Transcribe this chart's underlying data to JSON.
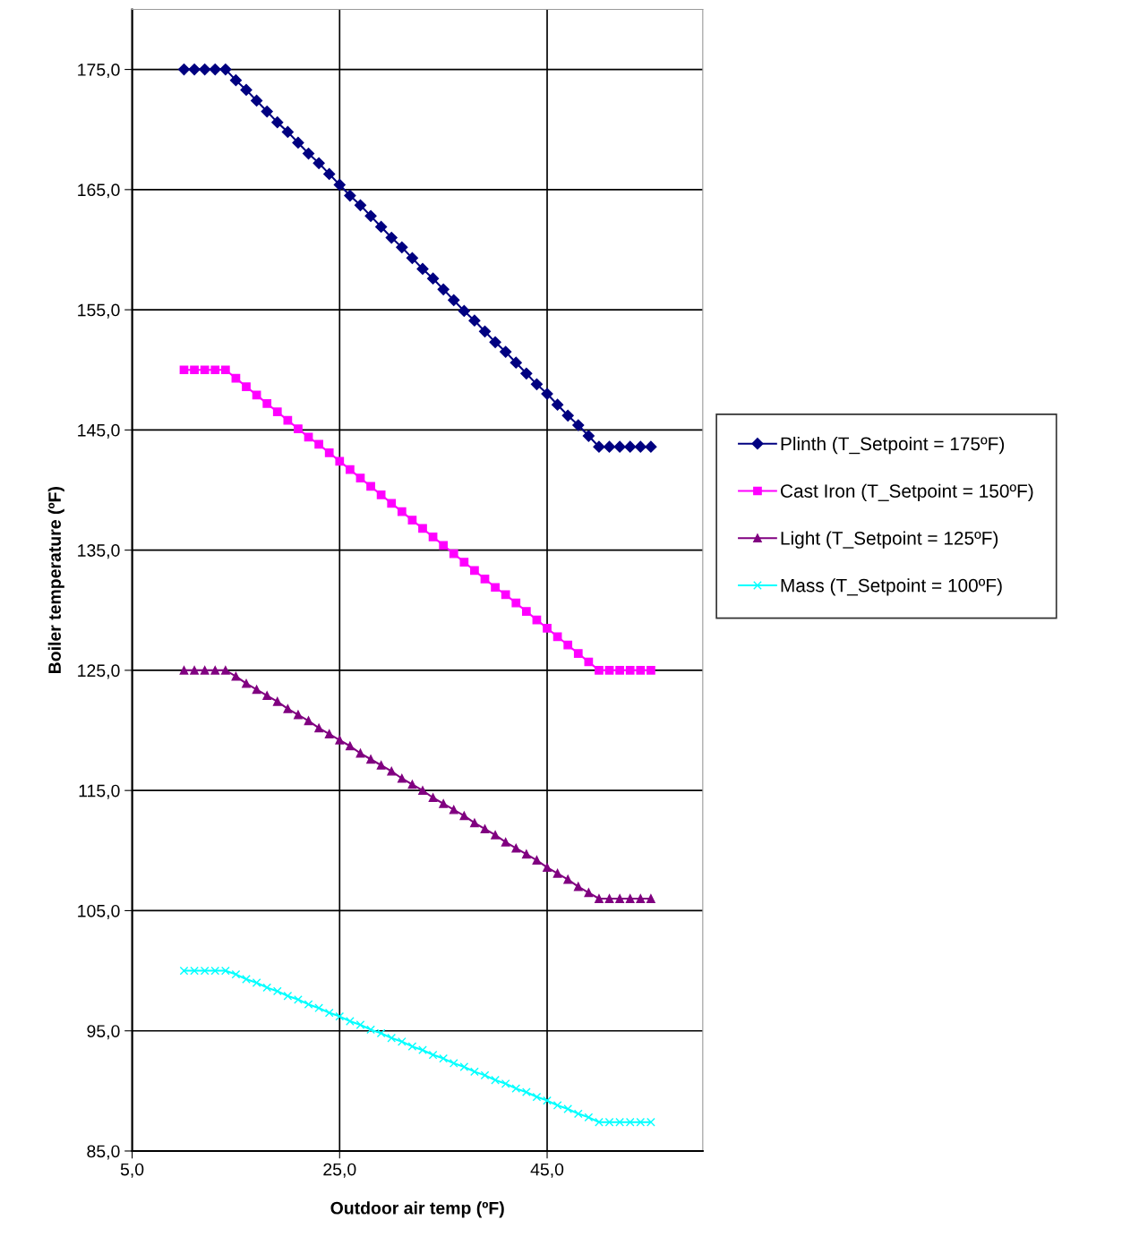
{
  "chart_data": {
    "type": "line",
    "xlabel": "Outdoor air temp (ºF)",
    "ylabel": "Boiler temperature (ºF)",
    "x": [
      10,
      11,
      12,
      13,
      14,
      15,
      16,
      17,
      18,
      19,
      20,
      21,
      22,
      23,
      24,
      25,
      26,
      27,
      28,
      29,
      30,
      31,
      32,
      33,
      34,
      35,
      36,
      37,
      38,
      39,
      40,
      41,
      42,
      43,
      44,
      45,
      46,
      47,
      48,
      49,
      50,
      51,
      52,
      53,
      54,
      55
    ],
    "series": [
      {
        "name": "Plinth (T_Setpoint = 175ºF)",
        "color": "#000080",
        "marker": "diamond",
        "values": [
          175,
          175,
          175,
          175,
          175,
          174.1,
          173.3,
          172.4,
          171.5,
          170.6,
          169.8,
          168.9,
          168.0,
          167.2,
          166.3,
          165.4,
          164.5,
          163.7,
          162.8,
          161.9,
          161.0,
          160.2,
          159.3,
          158.4,
          157.6,
          156.7,
          155.8,
          154.9,
          154.1,
          153.2,
          152.3,
          151.5,
          150.6,
          149.7,
          148.8,
          148.0,
          147.1,
          146.2,
          145.4,
          144.5,
          143.6,
          143.6,
          143.6,
          143.6,
          143.6,
          143.6
        ]
      },
      {
        "name": "Cast Iron (T_Setpoint = 150ºF)",
        "color": "#ff00ff",
        "marker": "square",
        "values": [
          150,
          150,
          150,
          150,
          150,
          149.3,
          148.6,
          147.9,
          147.2,
          146.5,
          145.8,
          145.1,
          144.4,
          143.8,
          143.1,
          142.4,
          141.7,
          141.0,
          140.3,
          139.6,
          138.9,
          138.2,
          137.5,
          136.8,
          136.1,
          135.4,
          134.7,
          134.0,
          133.3,
          132.6,
          131.9,
          131.3,
          130.6,
          129.9,
          129.2,
          128.5,
          127.8,
          127.1,
          126.4,
          125.7,
          125.0,
          125.0,
          125.0,
          125.0,
          125.0,
          125.0
        ]
      },
      {
        "name": "Light (T_Setpoint = 125ºF)",
        "color": "#800080",
        "marker": "triangle",
        "values": [
          125,
          125,
          125,
          125,
          125,
          124.5,
          123.9,
          123.4,
          122.9,
          122.4,
          121.8,
          121.3,
          120.8,
          120.2,
          119.7,
          119.2,
          118.7,
          118.1,
          117.6,
          117.1,
          116.6,
          116.0,
          115.5,
          115.0,
          114.4,
          113.9,
          113.4,
          112.9,
          112.3,
          111.8,
          111.3,
          110.7,
          110.2,
          109.7,
          109.2,
          108.6,
          108.1,
          107.6,
          107.0,
          106.5,
          106.0,
          106.0,
          106.0,
          106.0,
          106.0,
          106.0
        ]
      },
      {
        "name": "Mass (T_Setpoint = 100ºF)",
        "color": "#00ffff",
        "marker": "cross",
        "values": [
          100,
          100,
          100,
          100,
          100,
          99.7,
          99.3,
          99.0,
          98.6,
          98.3,
          97.9,
          97.6,
          97.2,
          96.9,
          96.5,
          96.2,
          95.8,
          95.5,
          95.1,
          94.8,
          94.4,
          94.1,
          93.7,
          93.4,
          93.0,
          92.7,
          92.3,
          92.0,
          91.6,
          91.3,
          90.9,
          90.6,
          90.2,
          89.9,
          89.5,
          89.2,
          88.8,
          88.5,
          88.1,
          87.8,
          87.4,
          87.4,
          87.4,
          87.4,
          87.4,
          87.4
        ]
      }
    ],
    "xlim": [
      5,
      60
    ],
    "xticks": [
      {
        "value": 5,
        "label": "5,0"
      },
      {
        "value": 25,
        "label": "25,0"
      },
      {
        "value": 45,
        "label": "45,0"
      }
    ],
    "ylim": [
      85,
      180
    ],
    "yticks": [
      {
        "value": 85,
        "label": "85,0"
      },
      {
        "value": 95,
        "label": "95,0"
      },
      {
        "value": 105,
        "label": "105,0"
      },
      {
        "value": 115,
        "label": "115,0"
      },
      {
        "value": 125,
        "label": "125,0"
      },
      {
        "value": 135,
        "label": "135,0"
      },
      {
        "value": 145,
        "label": "145,0"
      },
      {
        "value": 155,
        "label": "155,0"
      },
      {
        "value": 165,
        "label": "165,0"
      },
      {
        "value": 175,
        "label": "175,0"
      }
    ],
    "grid": true,
    "legend": "right",
    "line_style": "solid"
  }
}
